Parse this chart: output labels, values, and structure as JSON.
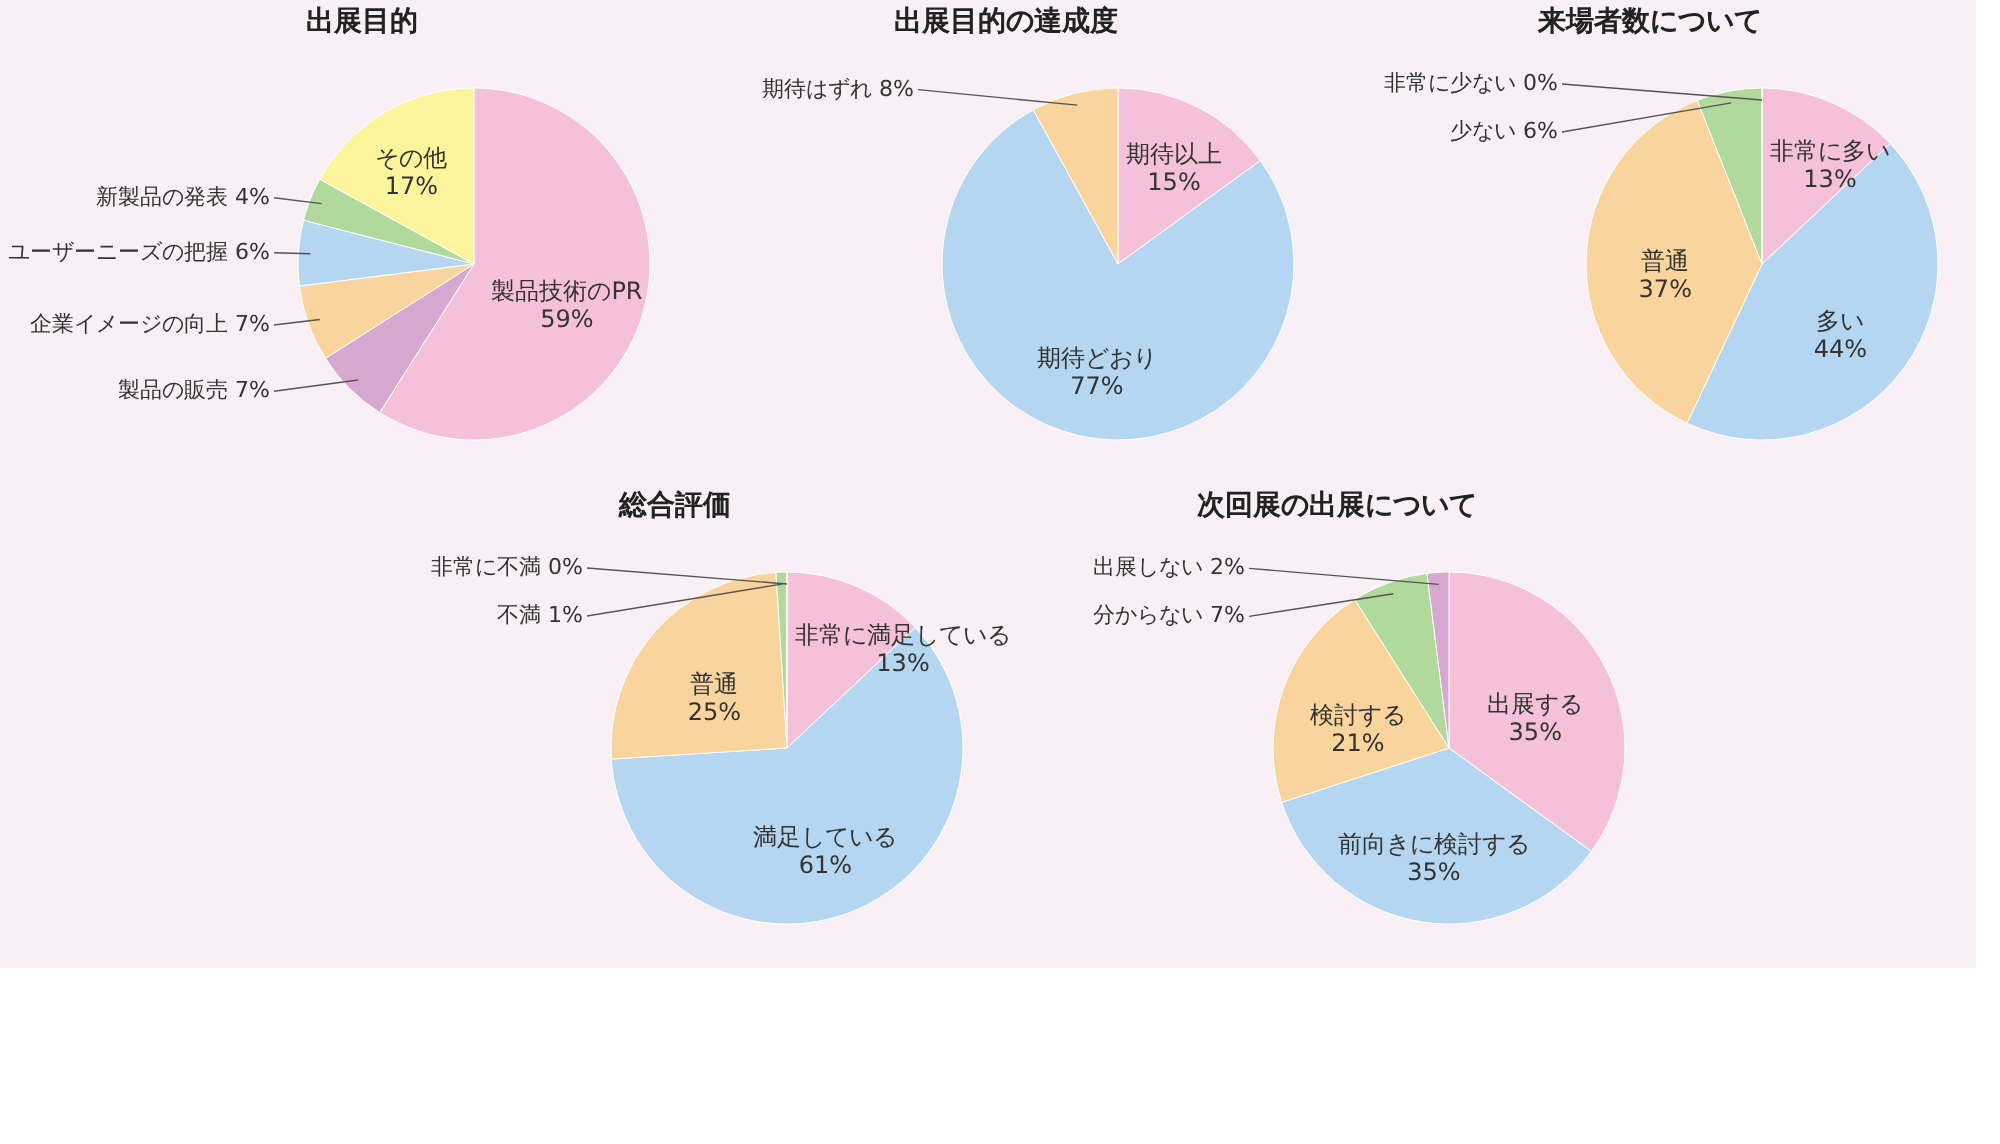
{
  "chart_data": [
    {
      "type": "pie",
      "title": "出展目的",
      "categories": [
        "製品技術のPR",
        "製品の販売",
        "企業イメージの向上",
        "ユーザーニーズの把握",
        "新製品の発表",
        "その他"
      ],
      "values": [
        59,
        7,
        7,
        6,
        4,
        17
      ],
      "value_labels": [
        "59%",
        "7%",
        "7%",
        "6%",
        "4%",
        "17%"
      ],
      "colors": [
        "#f5c1d9",
        "#d6a8cf",
        "#f9d49c",
        "#b5d6f0",
        "#b2d99c",
        "#fdf59c"
      ]
    },
    {
      "type": "pie",
      "title": "出展目的の達成度",
      "categories": [
        "期待以上",
        "期待どおり",
        "期待はずれ"
      ],
      "values": [
        15,
        77,
        8
      ],
      "value_labels": [
        "15%",
        "77%",
        "8%"
      ],
      "colors": [
        "#f5c1d9",
        "#b5d6f0",
        "#f9d49c"
      ]
    },
    {
      "type": "pie",
      "title": "来場者数について",
      "categories": [
        "非常に多い",
        "多い",
        "普通",
        "少ない",
        "非常に少ない"
      ],
      "values": [
        13,
        44,
        37,
        6,
        0
      ],
      "value_labels": [
        "13%",
        "44%",
        "37%",
        "6%",
        "0%"
      ],
      "colors": [
        "#f5c1d9",
        "#b5d6f0",
        "#f9d49c",
        "#b2d99c",
        "#d6a8cf"
      ]
    },
    {
      "type": "pie",
      "title": "総合評価",
      "categories": [
        "非常に満足している",
        "満足している",
        "普通",
        "不満",
        "非常に不満"
      ],
      "values": [
        13,
        61,
        25,
        1,
        0
      ],
      "value_labels": [
        "13%",
        "61%",
        "25%",
        "1%",
        "0%"
      ],
      "colors": [
        "#f5c1d9",
        "#b5d6f0",
        "#f9d49c",
        "#b2d99c",
        "#d6a8cf"
      ]
    },
    {
      "type": "pie",
      "title": "次回展の出展について",
      "categories": [
        "出展する",
        "前向きに検討する",
        "検討する",
        "分からない",
        "出展しない"
      ],
      "values": [
        35,
        35,
        21,
        7,
        2
      ],
      "value_labels": [
        "35%",
        "35%",
        "21%",
        "7%",
        "2%"
      ],
      "colors": [
        "#f5c1d9",
        "#b5d6f0",
        "#f9d49c",
        "#b2d99c",
        "#d6a8cf"
      ]
    }
  ]
}
